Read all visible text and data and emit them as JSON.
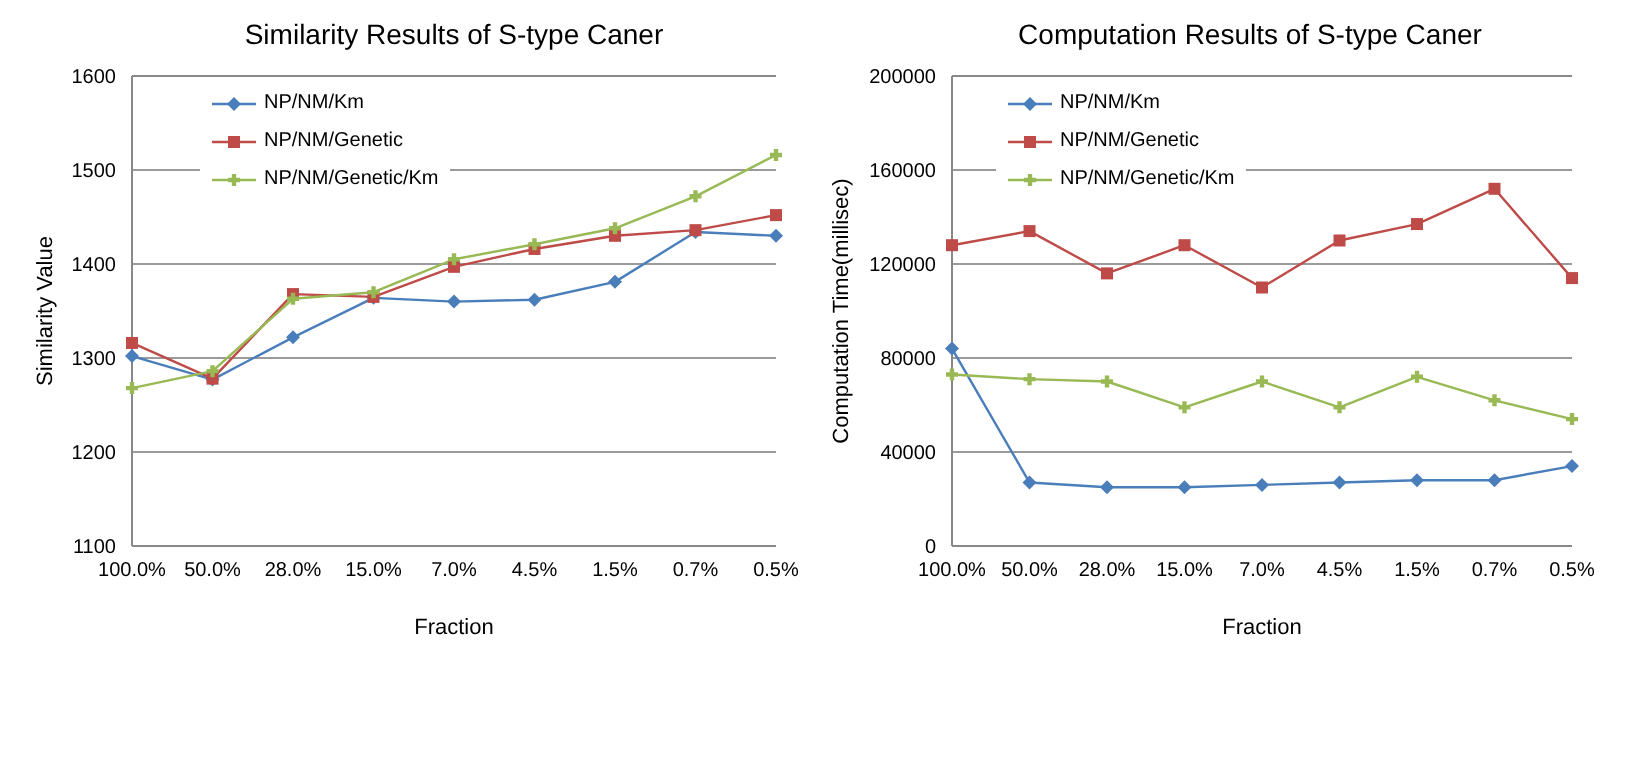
{
  "chart_data": [
    {
      "type": "line",
      "title": "Similarity Results of S-type Caner",
      "xlabel": "Fraction",
      "ylabel": "Similarity Value",
      "categories": [
        "100.0%",
        "50.0%",
        "28.0%",
        "15.0%",
        "7.0%",
        "4.5%",
        "1.5%",
        "0.7%",
        "0.5%"
      ],
      "series": [
        {
          "name": "NP/NM/Km",
          "color": "#4a7ebb",
          "marker": "diamond",
          "values": [
            1302,
            1277,
            1322,
            1364,
            1360,
            1362,
            1381,
            1434,
            1430
          ]
        },
        {
          "name": "NP/NM/Genetic",
          "color": "#be4b48",
          "marker": "square",
          "values": [
            1316,
            1278,
            1368,
            1365,
            1397,
            1416,
            1430,
            1436,
            1452
          ]
        },
        {
          "name": "NP/NM/Genetic/Km",
          "color": "#98b954",
          "marker": "cross",
          "values": [
            1268,
            1286,
            1363,
            1370,
            1405,
            1421,
            1438,
            1472,
            1516
          ]
        }
      ],
      "ylim": [
        1100,
        1600
      ],
      "yticks": [
        1100,
        1200,
        1300,
        1400,
        1500,
        1600
      ],
      "grid": "y",
      "legend": "top left"
    },
    {
      "type": "line",
      "title": "Computation Results of S-type Caner",
      "xlabel": "Fraction",
      "ylabel": "Computation Time(millisec)",
      "categories": [
        "100.0%",
        "50.0%",
        "28.0%",
        "15.0%",
        "7.0%",
        "4.5%",
        "1.5%",
        "0.7%",
        "0.5%"
      ],
      "series": [
        {
          "name": "NP/NM/Km",
          "color": "#4a7ebb",
          "marker": "diamond",
          "values": [
            84000,
            27000,
            25000,
            25000,
            26000,
            27000,
            28000,
            28000,
            34000
          ]
        },
        {
          "name": "NP/NM/Genetic",
          "color": "#be4b48",
          "marker": "square",
          "values": [
            128000,
            134000,
            116000,
            128000,
            110000,
            130000,
            137000,
            152000,
            114000
          ]
        },
        {
          "name": "NP/NM/Genetic/Km",
          "color": "#98b954",
          "marker": "cross",
          "values": [
            73000,
            71000,
            70000,
            59000,
            70000,
            59000,
            72000,
            62000,
            54000
          ]
        }
      ],
      "ylim": [
        0,
        200000
      ],
      "yticks": [
        0,
        40000,
        80000,
        120000,
        160000,
        200000
      ],
      "grid": "y",
      "legend": "top left"
    }
  ]
}
